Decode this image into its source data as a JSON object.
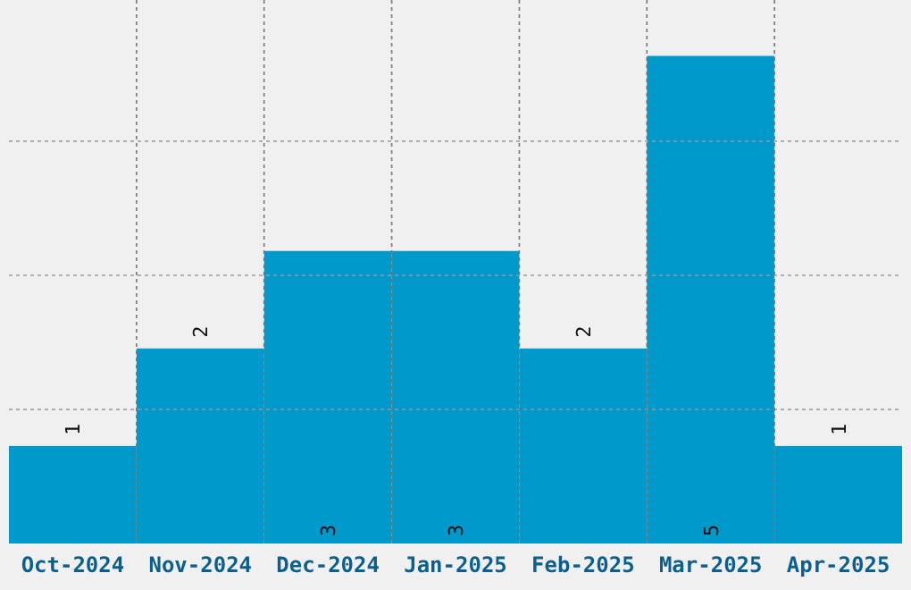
{
  "chart_data": {
    "type": "bar",
    "categories": [
      "Oct-2024",
      "Nov-2024",
      "Dec-2024",
      "Jan-2025",
      "Feb-2025",
      "Mar-2025",
      "Apr-2025"
    ],
    "values": [
      1,
      2,
      3,
      3,
      2,
      5,
      1
    ],
    "color": "#0099cc",
    "yticks": [
      {
        "value": 1.375,
        "label": null
      },
      {
        "value": 2.75,
        "label": null
      },
      {
        "value": 4.125,
        "label": null
      }
    ],
    "tick_labels": "x",
    "grid": true,
    "data_labels": true
  }
}
